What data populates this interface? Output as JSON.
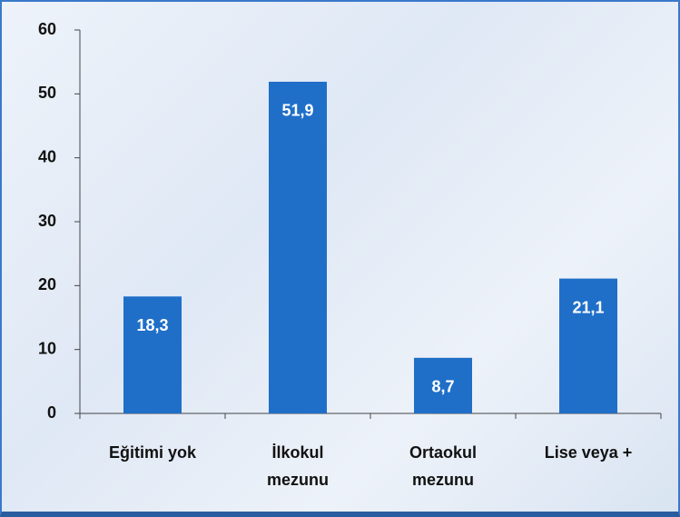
{
  "chart_data": {
    "type": "bar",
    "categories": [
      "Eğitimi yok",
      "İlkokul mezunu",
      "Ortaokul mezunu",
      "Lise veya +"
    ],
    "values": [
      18.3,
      51.9,
      8.7,
      21.1
    ],
    "value_labels": [
      "18,3",
      "51,9",
      "8,7",
      "21,1"
    ],
    "color": "#1f6fc8",
    "ylim": [
      0,
      60
    ],
    "yticks": [
      0,
      10,
      20,
      30,
      40,
      50,
      60
    ]
  }
}
